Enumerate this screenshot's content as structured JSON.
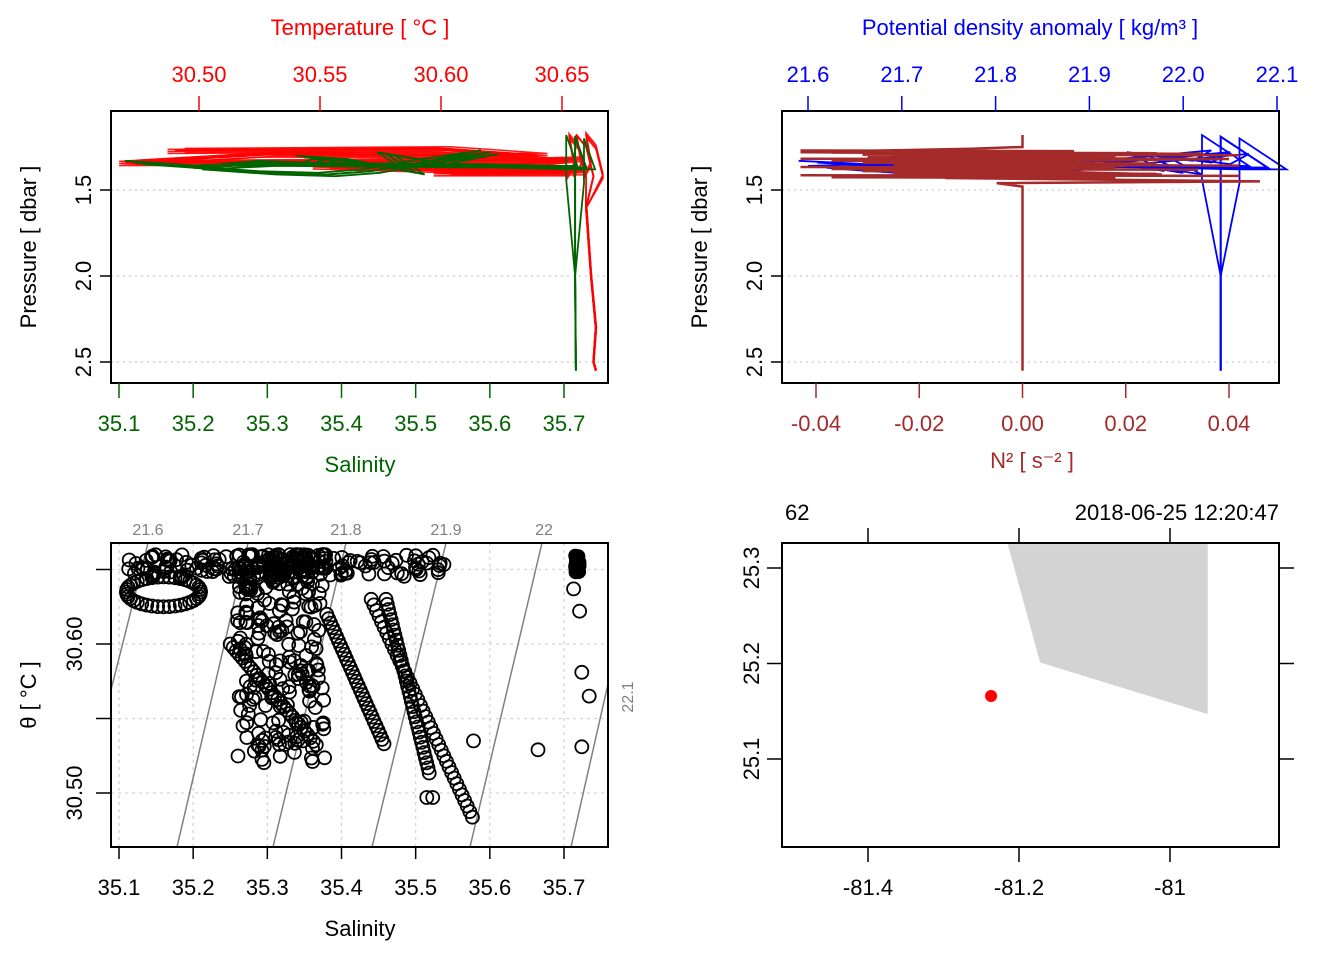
{
  "colors": {
    "temperature": "#ff0000",
    "salinity": "#006400",
    "density": "#0000ff",
    "n2": "#a52a2a",
    "axis": "#000000",
    "grid": "#d3d3d3",
    "isopycnal": "#808080",
    "land": "#d3d3d3",
    "station": "#ff0000"
  },
  "chart_data": [
    {
      "id": "ts-profile",
      "type": "line",
      "top_title": "Temperature [ °C ]",
      "top_ticks": [
        "30.50",
        "30.55",
        "30.60",
        "30.65"
      ],
      "top_tick_values": [
        30.5,
        30.55,
        30.6,
        30.65
      ],
      "xlabel": "Salinity",
      "x_ticks": [
        "35.1",
        "35.2",
        "35.3",
        "35.4",
        "35.5",
        "35.6",
        "35.7"
      ],
      "x_tick_values": [
        35.1,
        35.2,
        35.3,
        35.4,
        35.5,
        35.6,
        35.7
      ],
      "ylabel": "Pressure [ dbar ]",
      "y_ticks": [
        "1.5",
        "2.0",
        "2.5"
      ],
      "y_tick_values": [
        1.5,
        2.0,
        2.5
      ],
      "ylim": [
        2.6,
        1.1
      ],
      "grid": "horizontal dotted",
      "series": [
        {
          "name": "Temperature",
          "axis": "top",
          "points": [
            [
              30.49,
              1.27
            ],
            [
              30.6,
              1.26
            ],
            [
              30.64,
              1.3
            ],
            [
              30.53,
              1.29
            ],
            [
              30.47,
              1.34
            ],
            [
              30.62,
              1.33
            ],
            [
              30.655,
              1.32
            ],
            [
              30.62,
              1.37
            ],
            [
              30.55,
              1.36
            ],
            [
              30.63,
              1.39
            ],
            [
              30.655,
              1.38
            ],
            [
              30.6,
              1.4
            ],
            [
              30.655,
              1.4
            ],
            [
              30.655,
              1.42
            ],
            [
              30.658,
              1.35
            ],
            [
              30.656,
              1.18
            ],
            [
              30.66,
              1.25
            ],
            [
              30.663,
              1.42
            ],
            [
              30.66,
              1.6
            ],
            [
              30.662,
              2.0
            ],
            [
              30.664,
              2.3
            ],
            [
              30.663,
              2.5
            ],
            [
              30.664,
              2.55
            ]
          ]
        },
        {
          "name": "Salinity",
          "axis": "bottom",
          "points": [
            [
              35.12,
              1.34
            ],
            [
              35.22,
              1.37
            ],
            [
              35.3,
              1.34
            ],
            [
              35.36,
              1.35
            ],
            [
              35.38,
              1.32
            ],
            [
              35.35,
              1.31
            ],
            [
              35.42,
              1.33
            ],
            [
              35.5,
              1.4
            ],
            [
              35.46,
              1.29
            ],
            [
              35.53,
              1.34
            ],
            [
              35.6,
              1.28
            ],
            [
              35.52,
              1.33
            ],
            [
              35.44,
              1.39
            ],
            [
              35.38,
              1.41
            ],
            [
              35.3,
              1.4
            ],
            [
              35.2,
              1.37
            ],
            [
              35.3,
              1.35
            ],
            [
              35.6,
              1.36
            ],
            [
              35.7,
              1.37
            ],
            [
              35.73,
              1.37
            ],
            [
              35.715,
              1.19
            ],
            [
              35.715,
              1.45
            ],
            [
              35.715,
              2.0
            ],
            [
              35.716,
              2.55
            ]
          ]
        }
      ]
    },
    {
      "id": "density-n2-profile",
      "type": "line",
      "top_title": "Potential density anomaly [ kg/m³ ]",
      "top_ticks": [
        "21.6",
        "21.7",
        "21.8",
        "21.9",
        "22.0",
        "22.1"
      ],
      "top_tick_values": [
        21.6,
        21.7,
        21.8,
        21.9,
        22.0,
        22.1
      ],
      "xlabel": "N² [ s⁻² ]",
      "x_ticks": [
        "-0.04",
        "-0.02",
        "0.00",
        "0.02",
        "0.04"
      ],
      "x_tick_values": [
        -0.04,
        -0.02,
        0.0,
        0.02,
        0.04
      ],
      "ylabel": "Pressure [ dbar ]",
      "y_ticks": [
        "1.5",
        "2.0",
        "2.5"
      ],
      "y_tick_values": [
        1.5,
        2.0,
        2.5
      ],
      "ylim": [
        2.6,
        1.1
      ],
      "grid": "horizontal dotted",
      "series": [
        {
          "name": "Potential density anomaly",
          "axis": "top",
          "points": [
            [
              21.61,
              1.34
            ],
            [
              21.72,
              1.37
            ],
            [
              21.8,
              1.34
            ],
            [
              21.86,
              1.35
            ],
            [
              21.84,
              1.32
            ],
            [
              21.85,
              1.31
            ],
            [
              21.92,
              1.33
            ],
            [
              22.0,
              1.4
            ],
            [
              21.96,
              1.29
            ],
            [
              22.03,
              1.34
            ],
            [
              22.05,
              1.28
            ],
            [
              21.95,
              1.33
            ],
            [
              21.84,
              1.39
            ],
            [
              21.78,
              1.41
            ],
            [
              21.7,
              1.4
            ],
            [
              21.62,
              1.37
            ],
            [
              21.75,
              1.35
            ],
            [
              21.95,
              1.36
            ],
            [
              22.04,
              1.37
            ],
            [
              22.09,
              1.37
            ],
            [
              22.04,
              1.19
            ],
            [
              22.04,
              1.45
            ],
            [
              22.04,
              2.0
            ],
            [
              22.04,
              2.55
            ]
          ]
        },
        {
          "name": "N²",
          "axis": "bottom",
          "points": [
            [
              0.0,
              1.18
            ],
            [
              0.0,
              1.25
            ],
            [
              -0.01,
              1.26
            ],
            [
              -0.043,
              1.28
            ],
            [
              0.035,
              1.29
            ],
            [
              -0.03,
              1.31
            ],
            [
              0.04,
              1.32
            ],
            [
              -0.02,
              1.34
            ],
            [
              0.02,
              1.36
            ],
            [
              -0.01,
              1.38
            ],
            [
              0.027,
              1.41
            ],
            [
              -0.015,
              1.43
            ],
            [
              0.046,
              1.45
            ],
            [
              -0.005,
              1.46
            ],
            [
              0.0,
              1.48
            ],
            [
              0.0,
              2.0
            ],
            [
              0.0,
              2.55
            ]
          ]
        }
      ]
    },
    {
      "id": "ts-diagram",
      "type": "scatter",
      "xlabel": "Salinity",
      "x_ticks": [
        "35.1",
        "35.2",
        "35.3",
        "35.4",
        "35.5",
        "35.6",
        "35.7"
      ],
      "x_tick_values": [
        35.1,
        35.2,
        35.3,
        35.4,
        35.5,
        35.6,
        35.7
      ],
      "xlim": [
        35.09,
        35.76
      ],
      "ylabel": "θ [ °C ]",
      "y_ticks": [
        "30.50",
        "30.60"
      ],
      "y_tick_values": [
        30.5,
        30.6
      ],
      "y_minor_tick_values": [
        30.55,
        30.65
      ],
      "ylim": [
        30.47,
        30.675
      ],
      "grid": "dotted",
      "isopycnal_labels": [
        "21.6",
        "21.7",
        "21.8",
        "21.9",
        "22",
        "22.1"
      ],
      "isopycnal_values": [
        21.6,
        21.7,
        21.8,
        21.9,
        22.0,
        22.1
      ],
      "point_clusters": [
        {
          "s_range": [
            35.11,
            35.55
          ],
          "theta_range": [
            30.645,
            30.66
          ],
          "note": "dense band near surface"
        },
        {
          "s_range": [
            35.26,
            35.38
          ],
          "theta_range": [
            30.52,
            30.66
          ],
          "note": "dense core"
        },
        {
          "s_range": [
            35.44,
            35.58
          ],
          "theta_range": [
            30.48,
            30.62
          ],
          "note": "descending trail"
        },
        {
          "s_range": [
            35.71,
            35.72
          ],
          "theta_range": [
            30.645,
            30.66
          ],
          "note": "tight cluster"
        }
      ],
      "isolated_points": [
        [
          35.665,
          30.529
        ],
        [
          35.578,
          30.535
        ],
        [
          35.724,
          30.581
        ],
        [
          35.734,
          30.565
        ],
        [
          35.724,
          30.531
        ],
        [
          35.721,
          30.622
        ],
        [
          35.713,
          30.637
        ],
        [
          35.515,
          30.497
        ],
        [
          35.523,
          30.497
        ]
      ]
    },
    {
      "id": "station-map",
      "type": "scatter",
      "top_labels": [
        "62",
        "2018-06-25 12:20:47"
      ],
      "x_ticks": [
        "-81.4",
        "-81.2",
        "-81"
      ],
      "x_tick_values": [
        -81.4,
        -81.2,
        -81.0
      ],
      "y_ticks": [
        "25.3",
        "25.2",
        "25.1"
      ],
      "y_tick_values": [
        25.3,
        25.2,
        25.1
      ],
      "xlim": [
        -81.52,
        -80.95
      ],
      "ylim": [
        25.005,
        25.325
      ],
      "station": {
        "lon": -81.237,
        "lat": 25.166
      },
      "land_polygon": [
        [
          -81.215,
          25.325
        ],
        [
          -81.172,
          25.201
        ],
        [
          -80.95,
          25.147
        ],
        [
          -80.95,
          25.325
        ]
      ]
    }
  ]
}
